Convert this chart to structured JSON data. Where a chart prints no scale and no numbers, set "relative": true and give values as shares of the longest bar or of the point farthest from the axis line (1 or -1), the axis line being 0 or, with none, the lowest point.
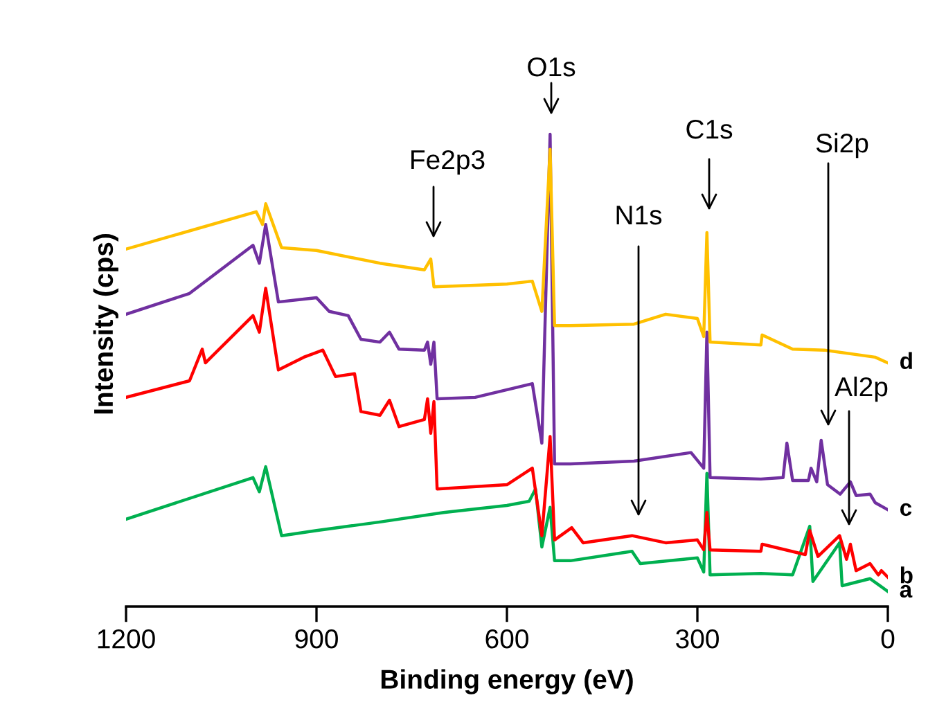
{
  "chart_data": {
    "type": "line",
    "relative": true,
    "xlabel": "Binding energy (eV)",
    "ylabel": "Intensity (cps)",
    "xlim": [
      1200,
      0
    ],
    "xticks": [
      1200,
      900,
      600,
      300,
      0
    ],
    "tick_labels": "x",
    "grid": false,
    "legend": false,
    "marker": "none",
    "line_style": "solid",
    "series": [
      {
        "name": "a",
        "color": "#00b050",
        "x": [
          1200,
          1000,
          990,
          980,
          955,
          900,
          800,
          700,
          600,
          565,
          555,
          545,
          532,
          525,
          500,
          403,
          390,
          300,
          290,
          285,
          280,
          200,
          150,
          123,
          118,
          76,
          72,
          28,
          0
        ],
        "values": [
          0.185,
          0.273,
          0.243,
          0.296,
          0.15,
          0.161,
          0.179,
          0.199,
          0.214,
          0.223,
          0.249,
          0.126,
          0.21,
          0.097,
          0.097,
          0.117,
          0.091,
          0.103,
          0.073,
          0.282,
          0.067,
          0.07,
          0.067,
          0.17,
          0.053,
          0.135,
          0.044,
          0.059,
          0.032
        ]
      },
      {
        "name": "b",
        "color": "#ff0000",
        "x": [
          1200,
          1100,
          1080,
          1075,
          1000,
          990,
          980,
          960,
          920,
          890,
          870,
          840,
          830,
          800,
          785,
          770,
          730,
          725,
          720,
          715,
          710,
          600,
          560,
          545,
          532,
          525,
          498,
          480,
          403,
          350,
          300,
          290,
          285,
          280,
          200,
          198,
          130,
          123,
          110,
          76,
          65,
          59,
          50,
          28,
          15,
          10,
          0
        ],
        "values": [
          0.443,
          0.478,
          0.545,
          0.516,
          0.616,
          0.581,
          0.674,
          0.501,
          0.528,
          0.543,
          0.487,
          0.493,
          0.413,
          0.405,
          0.437,
          0.381,
          0.396,
          0.44,
          0.367,
          0.434,
          0.249,
          0.258,
          0.293,
          0.15,
          0.36,
          0.141,
          0.167,
          0.135,
          0.15,
          0.135,
          0.141,
          0.12,
          0.199,
          0.12,
          0.117,
          0.132,
          0.11,
          0.161,
          0.106,
          0.15,
          0.1,
          0.132,
          0.076,
          0.091,
          0.067,
          0.076,
          0.062
        ]
      },
      {
        "name": "c",
        "color": "#7030a0",
        "x": [
          1200,
          1100,
          1000,
          990,
          980,
          960,
          920,
          900,
          880,
          850,
          830,
          800,
          785,
          770,
          730,
          725,
          720,
          715,
          710,
          650,
          560,
          545,
          532,
          525,
          500,
          400,
          310,
          290,
          285,
          280,
          200,
          165,
          159,
          150,
          125,
          121,
          112,
          105,
          95,
          75,
          59,
          50,
          28,
          20,
          0
        ],
        "values": [
          0.619,
          0.663,
          0.765,
          0.727,
          0.809,
          0.645,
          0.651,
          0.654,
          0.625,
          0.616,
          0.566,
          0.56,
          0.581,
          0.545,
          0.543,
          0.56,
          0.513,
          0.56,
          0.44,
          0.443,
          0.472,
          0.346,
          1.0,
          0.302,
          0.302,
          0.308,
          0.326,
          0.293,
          0.581,
          0.273,
          0.27,
          0.273,
          0.346,
          0.267,
          0.267,
          0.293,
          0.264,
          0.352,
          0.258,
          0.238,
          0.264,
          0.235,
          0.238,
          0.22,
          0.205
        ]
      },
      {
        "name": "d",
        "color": "#ffc000",
        "x": [
          1200,
          995,
          985,
          980,
          955,
          900,
          800,
          730,
          720,
          715,
          600,
          560,
          545,
          532,
          525,
          500,
          400,
          350,
          300,
          290,
          285,
          280,
          200,
          198,
          150,
          100,
          20,
          0
        ],
        "values": [
          0.757,
          0.836,
          0.809,
          0.853,
          0.76,
          0.754,
          0.727,
          0.713,
          0.736,
          0.677,
          0.683,
          0.689,
          0.625,
          0.968,
          0.595,
          0.595,
          0.598,
          0.619,
          0.61,
          0.572,
          0.792,
          0.56,
          0.554,
          0.575,
          0.545,
          0.543,
          0.528,
          0.516
        ]
      }
    ],
    "annotations": [
      "O1s",
      "Fe2p3",
      "N1s",
      "C1s",
      "Si2p",
      "Al2p"
    ]
  }
}
